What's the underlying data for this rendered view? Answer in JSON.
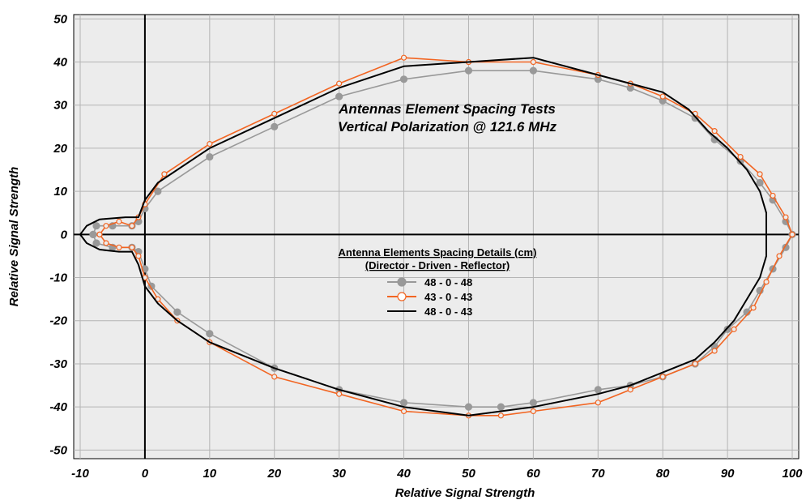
{
  "chart_data": {
    "type": "line",
    "title": "Antennas Element Spacing Tests",
    "subtitle": "Vertical Polarization @ 121.6 MHz",
    "xlabel": "Relative Signal Strength",
    "ylabel": "Relative Signal Strength",
    "xlim": [
      -11,
      101
    ],
    "ylim": [
      -52,
      51
    ],
    "x_ticks": [
      -10,
      0,
      10,
      20,
      30,
      40,
      50,
      60,
      70,
      80,
      90,
      100
    ],
    "y_ticks": [
      50,
      40,
      30,
      20,
      10,
      0,
      -10,
      -20,
      -30,
      -40,
      -50
    ],
    "grid": true,
    "plot_background": "#ececec",
    "legend": {
      "title": "Antenna Elements Spacing Details (cm)",
      "subtitle": "(Director - Driven - Reflector)",
      "placement": "center"
    },
    "series": [
      {
        "name": "48 - 0 - 48",
        "color": "#999999",
        "marker": "filled-circle",
        "points": [
          [
            -8,
            0
          ],
          [
            -7.5,
            -2
          ],
          [
            -5,
            -3
          ],
          [
            -2,
            -3
          ],
          [
            -1,
            -4
          ],
          [
            0,
            -8
          ],
          [
            1,
            -12
          ],
          [
            5,
            -18
          ],
          [
            10,
            -23
          ],
          [
            20,
            -31
          ],
          [
            30,
            -36
          ],
          [
            40,
            -39
          ],
          [
            50,
            -40
          ],
          [
            55,
            -40
          ],
          [
            60,
            -39
          ],
          [
            70,
            -36
          ],
          [
            75,
            -35
          ],
          [
            80,
            -33
          ],
          [
            85,
            -30
          ],
          [
            88,
            -26
          ],
          [
            90,
            -22
          ],
          [
            93,
            -18
          ],
          [
            95,
            -13
          ],
          [
            97,
            -8
          ],
          [
            99,
            -3
          ],
          [
            100,
            0
          ],
          [
            99,
            3
          ],
          [
            97,
            8
          ],
          [
            95,
            12
          ],
          [
            92,
            17
          ],
          [
            88,
            22
          ],
          [
            85,
            27
          ],
          [
            80,
            31
          ],
          [
            75,
            34
          ],
          [
            70,
            36
          ],
          [
            60,
            38
          ],
          [
            50,
            38
          ],
          [
            40,
            36
          ],
          [
            30,
            32
          ],
          [
            20,
            25
          ],
          [
            10,
            18
          ],
          [
            2,
            10
          ],
          [
            0,
            6
          ],
          [
            -1,
            3
          ],
          [
            -2,
            2
          ],
          [
            -5,
            2
          ],
          [
            -7.5,
            2
          ],
          [
            -8,
            0
          ]
        ]
      },
      {
        "name": "43 - 0 - 43",
        "color": "#f26522",
        "marker": "open-circle",
        "points": [
          [
            -7,
            0
          ],
          [
            -6,
            -2
          ],
          [
            -4,
            -3
          ],
          [
            -2,
            -3
          ],
          [
            -1,
            -5
          ],
          [
            0,
            -10
          ],
          [
            2,
            -15
          ],
          [
            5,
            -20
          ],
          [
            10,
            -25
          ],
          [
            20,
            -33
          ],
          [
            30,
            -37
          ],
          [
            40,
            -41
          ],
          [
            50,
            -42
          ],
          [
            55,
            -42
          ],
          [
            60,
            -41
          ],
          [
            70,
            -39
          ],
          [
            75,
            -36
          ],
          [
            80,
            -33
          ],
          [
            85,
            -30
          ],
          [
            88,
            -27
          ],
          [
            91,
            -22
          ],
          [
            94,
            -17
          ],
          [
            96,
            -11
          ],
          [
            98,
            -5
          ],
          [
            100,
            0
          ],
          [
            99,
            4
          ],
          [
            97,
            9
          ],
          [
            95,
            14
          ],
          [
            92,
            18
          ],
          [
            88,
            24
          ],
          [
            85,
            28
          ],
          [
            80,
            32
          ],
          [
            75,
            35
          ],
          [
            70,
            37
          ],
          [
            60,
            40
          ],
          [
            50,
            40
          ],
          [
            40,
            41
          ],
          [
            30,
            35
          ],
          [
            20,
            28
          ],
          [
            10,
            21
          ],
          [
            3,
            14
          ],
          [
            0,
            7
          ],
          [
            -1,
            4
          ],
          [
            -2,
            2
          ],
          [
            -4,
            3
          ],
          [
            -6,
            2
          ],
          [
            -7,
            0
          ]
        ]
      },
      {
        "name": "48 - 0 - 43",
        "color": "#000000",
        "marker": "none",
        "points": [
          [
            -10,
            0
          ],
          [
            -9,
            -2
          ],
          [
            -7,
            -3.5
          ],
          [
            -4,
            -4
          ],
          [
            -2,
            -4
          ],
          [
            -1,
            -7
          ],
          [
            0,
            -12
          ],
          [
            2,
            -16
          ],
          [
            5,
            -20
          ],
          [
            10,
            -25
          ],
          [
            20,
            -31
          ],
          [
            30,
            -36
          ],
          [
            40,
            -40
          ],
          [
            50,
            -42
          ],
          [
            55,
            -41
          ],
          [
            60,
            -40
          ],
          [
            70,
            -37
          ],
          [
            75,
            -35
          ],
          [
            80,
            -32
          ],
          [
            85,
            -29
          ],
          [
            88,
            -25
          ],
          [
            91,
            -20
          ],
          [
            93,
            -15
          ],
          [
            95,
            -10
          ],
          [
            96,
            -5
          ],
          [
            96,
            0
          ],
          [
            96,
            5
          ],
          [
            95,
            10
          ],
          [
            93,
            15
          ],
          [
            90,
            20
          ],
          [
            87,
            24
          ],
          [
            84,
            29
          ],
          [
            80,
            33
          ],
          [
            75,
            35
          ],
          [
            70,
            37
          ],
          [
            60,
            41
          ],
          [
            50,
            40
          ],
          [
            40,
            39
          ],
          [
            30,
            34
          ],
          [
            20,
            27
          ],
          [
            10,
            20
          ],
          [
            2,
            12
          ],
          [
            0,
            8
          ],
          [
            -1,
            4
          ],
          [
            -3,
            4
          ],
          [
            -7,
            3.5
          ],
          [
            -9,
            2
          ],
          [
            -10,
            0
          ]
        ]
      }
    ]
  }
}
